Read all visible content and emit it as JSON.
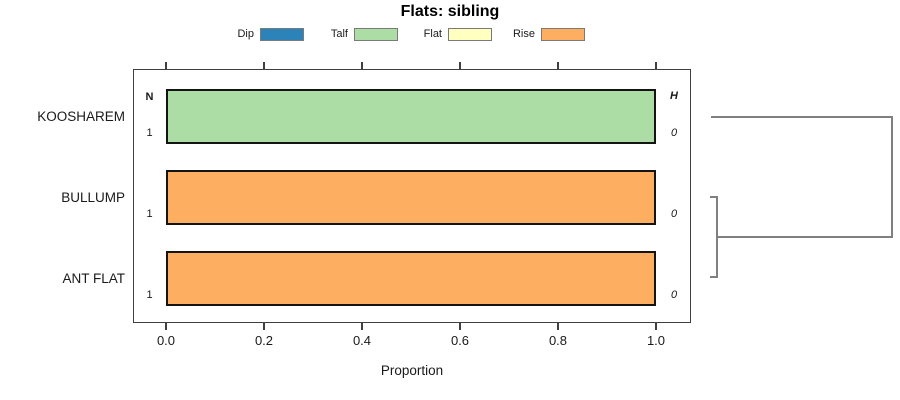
{
  "title": "Flats: sibling",
  "axis": {
    "label": "Proportion",
    "ticks": [
      "0.0",
      "0.2",
      "0.4",
      "0.6",
      "0.8",
      "1.0"
    ]
  },
  "columns": {
    "n_header": "N",
    "h_header": "H"
  },
  "legend": {
    "items": [
      {
        "label": "Dip",
        "color": "#2B83BA"
      },
      {
        "label": "Talf",
        "color": "#ABDDA4"
      },
      {
        "label": "Flat",
        "color": "#FFFFBF"
      },
      {
        "label": "Rise",
        "color": "#FDAE61"
      }
    ]
  },
  "rows": [
    {
      "label": "KOOSHAREM",
      "n": "1",
      "h": "0",
      "segment": "Talf",
      "color": "#ABDDA4",
      "proportion": 1.0
    },
    {
      "label": "BULLUMP",
      "n": "1",
      "h": "0",
      "segment": "Rise",
      "color": "#FDAE61",
      "proportion": 1.0
    },
    {
      "label": "ANT FLAT",
      "n": "1",
      "h": "0",
      "segment": "Rise",
      "color": "#FDAE61",
      "proportion": 1.0
    }
  ],
  "chart_data": {
    "type": "bar",
    "orientation": "horizontal",
    "stacked": true,
    "title": "Flats: sibling",
    "xlabel": "Proportion",
    "ylabel": "",
    "xlim": [
      0,
      1
    ],
    "xticks": [
      0.0,
      0.2,
      0.4,
      0.6,
      0.8,
      1.0
    ],
    "categories": [
      "KOOSHAREM",
      "BULLUMP",
      "ANT FLAT"
    ],
    "series": [
      {
        "name": "Dip",
        "color": "#2B83BA",
        "values": [
          0,
          0,
          0
        ]
      },
      {
        "name": "Talf",
        "color": "#ABDDA4",
        "values": [
          1,
          0,
          0
        ]
      },
      {
        "name": "Flat",
        "color": "#FFFFBF",
        "values": [
          0,
          0,
          0
        ]
      },
      {
        "name": "Rise",
        "color": "#FDAE61",
        "values": [
          0,
          1,
          1
        ]
      }
    ],
    "extra_columns": {
      "N": [
        1,
        1,
        1
      ],
      "H": [
        0,
        0,
        0
      ]
    },
    "legend_position": "top",
    "grid": false,
    "annotations": "Right-margin dendrogram: BULLUMP and ANT FLAT cluster first at low height, then join KOOSHAREM at greater height"
  },
  "dendrogram": {
    "color": "#808080",
    "joins": [
      {
        "members": [
          "BULLUMP",
          "ANT FLAT"
        ],
        "height": "small"
      },
      {
        "members": [
          "BULLUMP+ANT FLAT",
          "KOOSHAREM"
        ],
        "height": "large"
      }
    ]
  }
}
